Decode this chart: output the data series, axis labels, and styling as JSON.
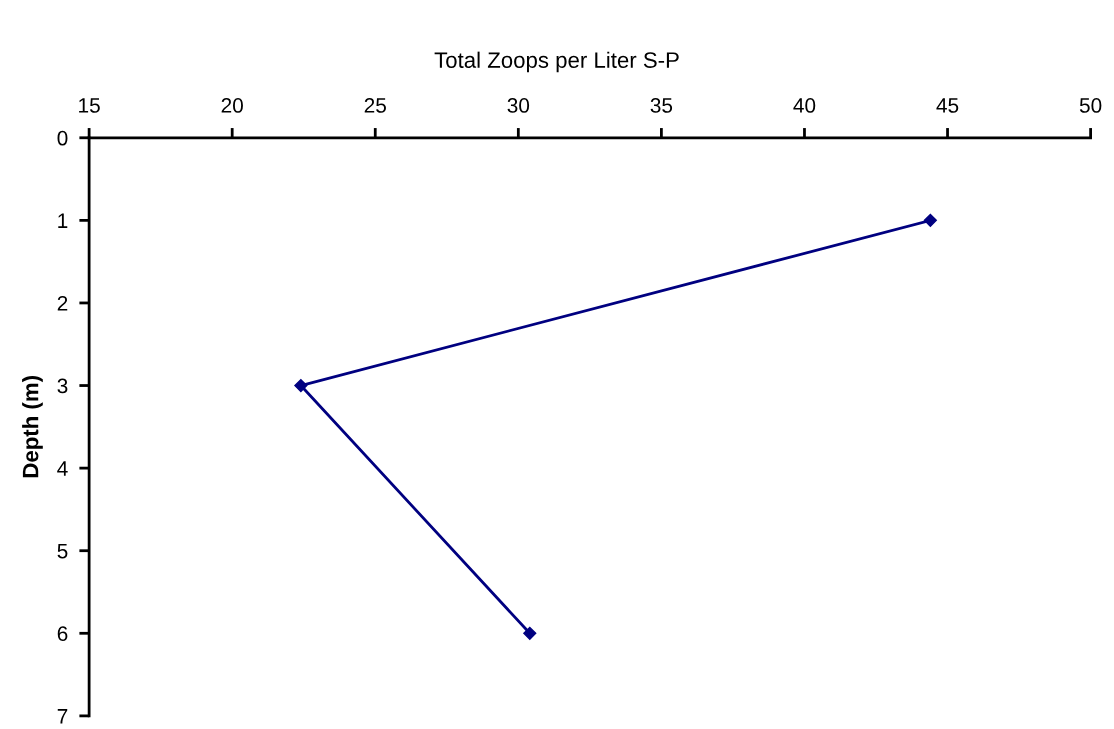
{
  "chart_data": {
    "type": "line",
    "title": "Total Zoops per Liter S-P",
    "ylabel": "Depth (m)",
    "x": [
      44.4,
      22.4,
      30.4
    ],
    "values": [
      1,
      3,
      6
    ],
    "color": "#000080",
    "xlim": [
      15,
      50
    ],
    "xticks": [
      15,
      20,
      25,
      30,
      35,
      40,
      45,
      50
    ],
    "ylim": [
      7,
      0
    ],
    "yticks": [
      0,
      1,
      2,
      3,
      4,
      5,
      6,
      7
    ],
    "marker": "diamond",
    "line_style": "solid",
    "grid": false,
    "legend": false
  }
}
